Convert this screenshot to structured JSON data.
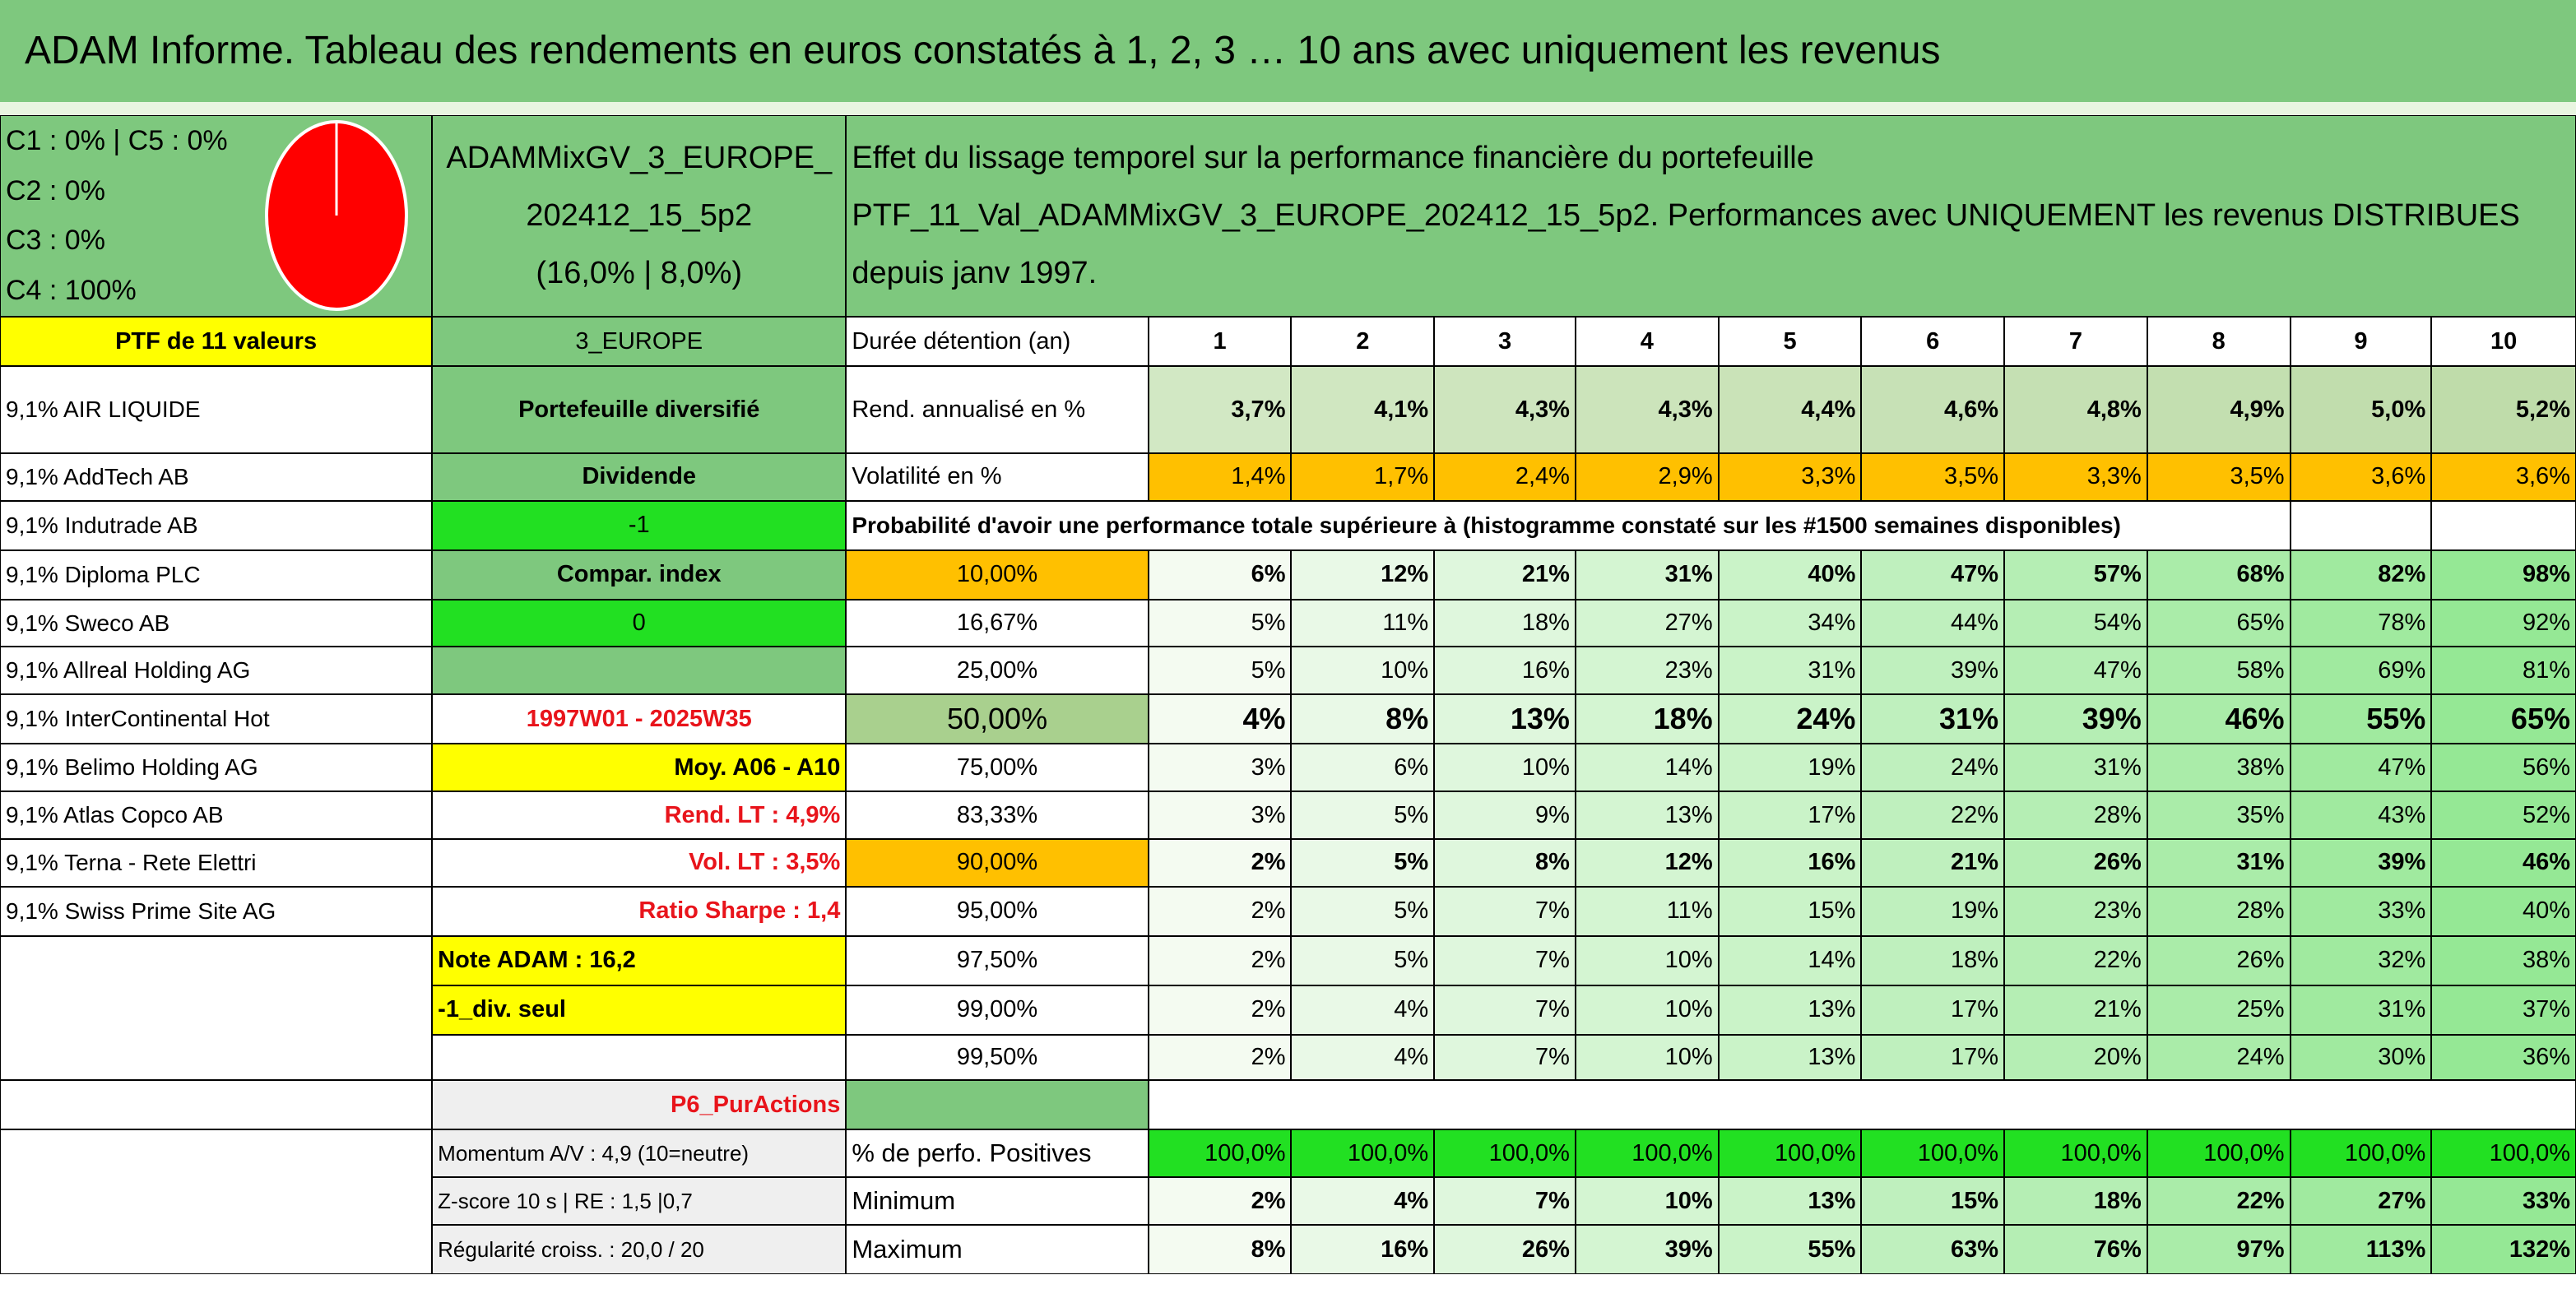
{
  "title": "ADAM Informe. Tableau des rendements en euros constatés à 1, 2, 3 … 10 ans avec uniquement les revenus",
  "allocation": [
    "C1 : 0% | C5 : 0%",
    "C2 : 0%",
    "C3 : 0%",
    "C4 : 100%"
  ],
  "portfolio": {
    "name": "ADAMMixGV_3_EUROPE_202412_15_5p2",
    "stats": "(16,0% | 8,0%)"
  },
  "description": "Effet du lissage temporel sur la performance financière du portefeuille PTF_11_Val_ADAMMixGV_3_EUROPE_202412_15_5p2. Performances avec UNIQUEMENT les revenus DISTRIBUES depuis janv 1997.",
  "holdings": {
    "header": "PTF de 11 valeurs",
    "items": [
      "9,1% AIR LIQUIDE",
      "9,1% AddTech AB",
      "9,1% Indutrade AB",
      "9,1% Diploma PLC",
      "9,1% Sweco AB",
      "9,1% Allreal Holding AG",
      "9,1% InterContinental Hot",
      "9,1% Belimo Holding AG",
      "9,1% Atlas Copco AB",
      "9,1% Terna - Rete Elettri",
      "9,1% Swiss Prime Site AG"
    ]
  },
  "info": {
    "zone": "3_EUROPE",
    "kind": "Portefeuille diversifié",
    "mode": "Dividende",
    "mode_value": "-1",
    "compar": "Compar. index",
    "compar_value": "0",
    "period": "1997W01 - 2025W35",
    "average": "Moy. A06 - A10",
    "rend_lt": "Rend. LT : 4,9%",
    "vol_lt": "Vol. LT : 3,5%",
    "sharpe": "Ratio Sharpe : 1,4",
    "note": "Note ADAM : 16,2",
    "div_only": "-1_div. seul",
    "profile": "P6_PurActions",
    "momentum": "Momentum A/V : 4,9 (10=neutre)",
    "zscore": "Z-score 10 s | RE : 1,5 |0,7",
    "regularity": "Régularité croiss. : 20,0 / 20"
  },
  "table": {
    "horizon_label": "Durée détention (an)",
    "years": [
      1,
      2,
      3,
      4,
      5,
      6,
      7,
      8,
      9,
      10
    ],
    "return": {
      "label": "Rend. annualisé en %",
      "values": [
        "3,7%",
        "4,1%",
        "4,3%",
        "4,3%",
        "4,4%",
        "4,6%",
        "4,8%",
        "4,9%",
        "5,0%",
        "5,2%"
      ]
    },
    "volatility": {
      "label": "Volatilité en %",
      "values": [
        "1,4%",
        "1,7%",
        "2,4%",
        "2,9%",
        "3,3%",
        "3,5%",
        "3,3%",
        "3,5%",
        "3,6%",
        "3,6%"
      ]
    },
    "probability_title": "Probabilité d'avoir une performance totale supérieure à (histogramme constaté sur les #1500 semaines disponibles)",
    "probabilities": [
      {
        "threshold": "10,00%",
        "values": [
          "6%",
          "12%",
          "21%",
          "31%",
          "40%",
          "47%",
          "57%",
          "68%",
          "82%",
          "98%"
        ]
      },
      {
        "threshold": "16,67%",
        "values": [
          "5%",
          "11%",
          "18%",
          "27%",
          "34%",
          "44%",
          "54%",
          "65%",
          "78%",
          "92%"
        ]
      },
      {
        "threshold": "25,00%",
        "values": [
          "5%",
          "10%",
          "16%",
          "23%",
          "31%",
          "39%",
          "47%",
          "58%",
          "69%",
          "81%"
        ]
      },
      {
        "threshold": "50,00%",
        "values": [
          "4%",
          "8%",
          "13%",
          "18%",
          "24%",
          "31%",
          "39%",
          "46%",
          "55%",
          "65%"
        ]
      },
      {
        "threshold": "75,00%",
        "values": [
          "3%",
          "6%",
          "10%",
          "14%",
          "19%",
          "24%",
          "31%",
          "38%",
          "47%",
          "56%"
        ]
      },
      {
        "threshold": "83,33%",
        "values": [
          "3%",
          "5%",
          "9%",
          "13%",
          "17%",
          "22%",
          "28%",
          "35%",
          "43%",
          "52%"
        ]
      },
      {
        "threshold": "90,00%",
        "values": [
          "2%",
          "5%",
          "8%",
          "12%",
          "16%",
          "21%",
          "26%",
          "31%",
          "39%",
          "46%"
        ]
      },
      {
        "threshold": "95,00%",
        "values": [
          "2%",
          "5%",
          "7%",
          "11%",
          "15%",
          "19%",
          "23%",
          "28%",
          "33%",
          "40%"
        ]
      },
      {
        "threshold": "97,50%",
        "values": [
          "2%",
          "5%",
          "7%",
          "10%",
          "14%",
          "18%",
          "22%",
          "26%",
          "32%",
          "38%"
        ]
      },
      {
        "threshold": "99,00%",
        "values": [
          "2%",
          "4%",
          "7%",
          "10%",
          "13%",
          "17%",
          "21%",
          "25%",
          "31%",
          "37%"
        ]
      },
      {
        "threshold": "99,50%",
        "values": [
          "2%",
          "4%",
          "7%",
          "10%",
          "13%",
          "17%",
          "20%",
          "24%",
          "30%",
          "36%"
        ]
      }
    ],
    "positive": {
      "label": "% de perfo. Positives",
      "values": [
        "100,0%",
        "100,0%",
        "100,0%",
        "100,0%",
        "100,0%",
        "100,0%",
        "100,0%",
        "100,0%",
        "100,0%",
        "100,0%"
      ]
    },
    "minimum": {
      "label": "Minimum",
      "values": [
        "2%",
        "4%",
        "7%",
        "10%",
        "13%",
        "15%",
        "18%",
        "22%",
        "27%",
        "33%"
      ]
    },
    "maximum": {
      "label": "Maximum",
      "values": [
        "8%",
        "16%",
        "26%",
        "39%",
        "55%",
        "63%",
        "76%",
        "97%",
        "113%",
        "132%"
      ]
    }
  }
}
